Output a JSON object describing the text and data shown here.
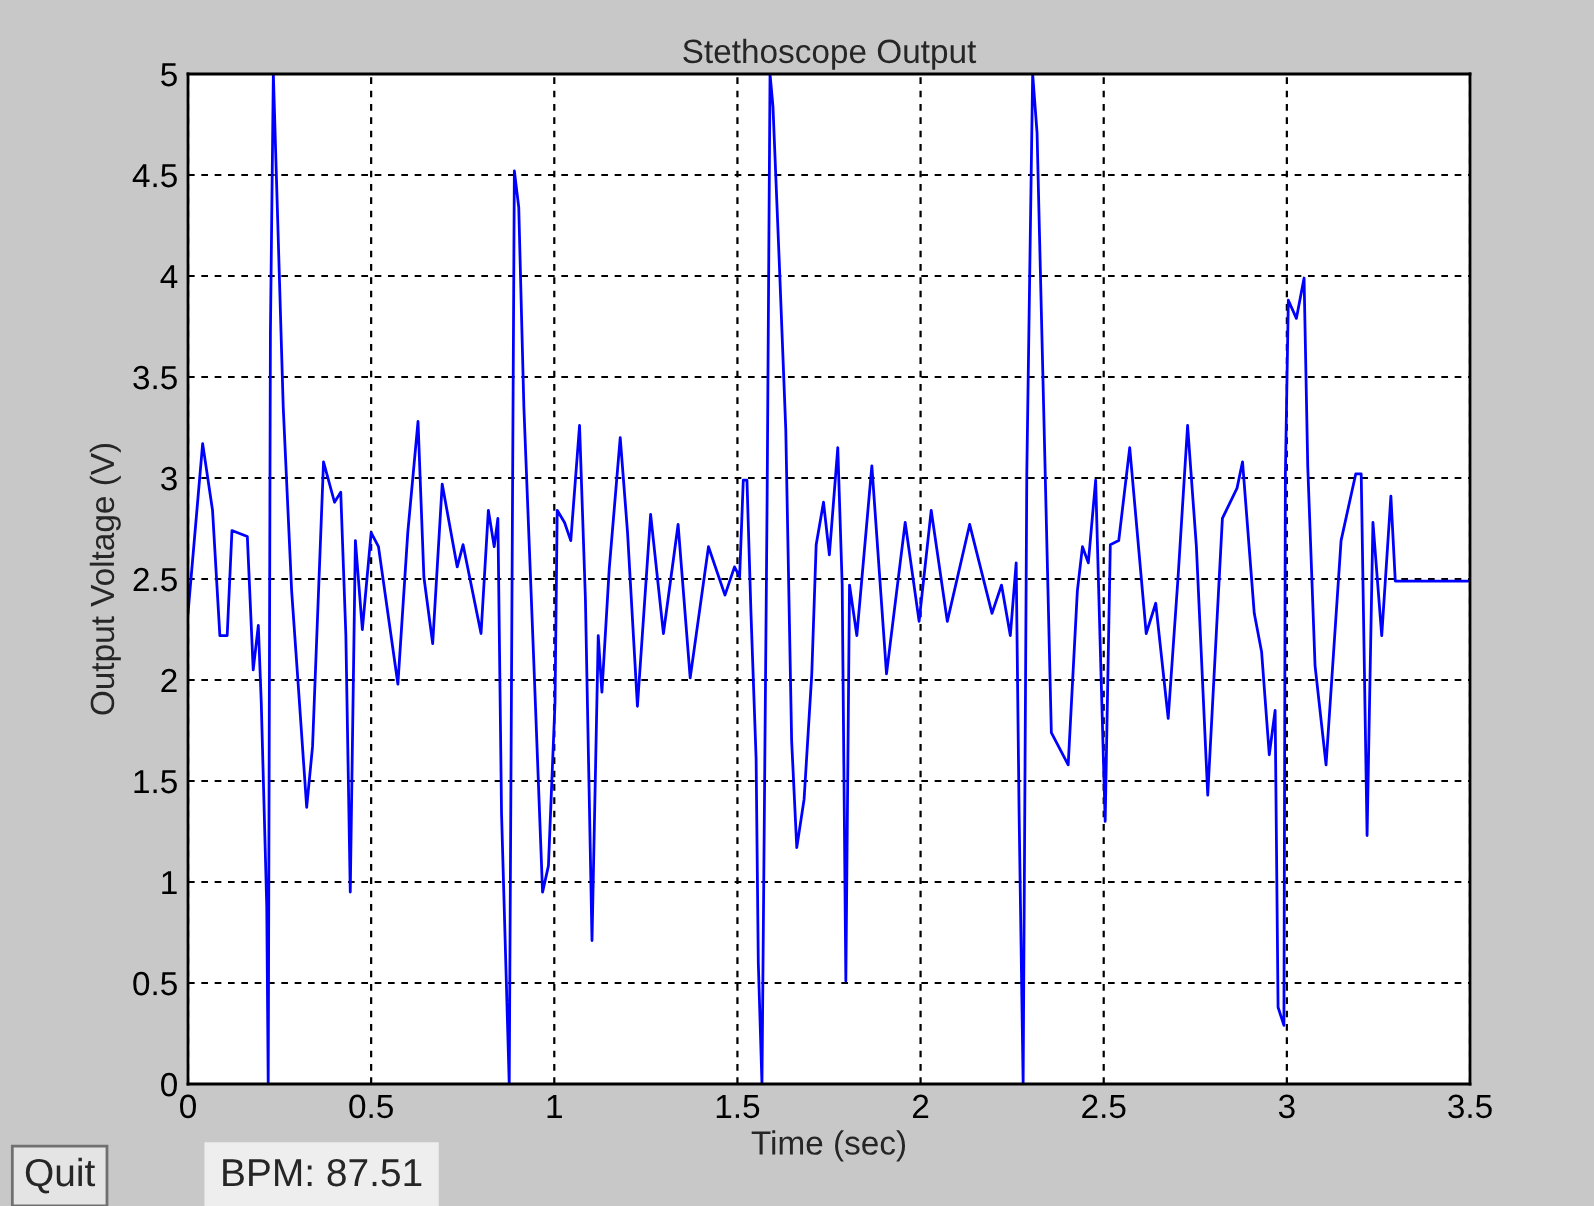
{
  "chart_data": {
    "type": "line",
    "title": "Stethoscope Output",
    "xlabel": "Time (sec)",
    "ylabel": "Output Voltage (V)",
    "annotations": [
      "Quit",
      "BPM: 87.51"
    ],
    "xlim": [
      0,
      3.5
    ],
    "xticks": [
      0,
      0.5,
      1,
      1.5,
      2,
      2.5,
      3,
      3.5
    ],
    "ylim": [
      0,
      5
    ],
    "yticks": [
      0,
      0.5,
      1,
      1.5,
      2,
      2.5,
      3,
      3.5,
      4,
      4.5,
      5
    ],
    "grid": true,
    "marker": "none",
    "line_style": "solid",
    "series": [
      {
        "color": "#0000ff",
        "x": [
          0,
          0.04,
          0.067,
          0.087,
          0.107,
          0.12,
          0.162,
          0.178,
          0.192,
          0.2,
          0.215,
          0.219,
          0.225,
          0.233,
          0.245,
          0.26,
          0.283,
          0.3,
          0.324,
          0.34,
          0.37,
          0.4,
          0.417,
          0.431,
          0.443,
          0.457,
          0.476,
          0.5,
          0.52,
          0.573,
          0.6,
          0.628,
          0.644,
          0.668,
          0.694,
          0.735,
          0.751,
          0.8,
          0.82,
          0.836,
          0.846,
          0.856,
          0.877,
          0.891,
          0.903,
          0.917,
          0.943,
          0.968,
          0.984,
          1.002,
          1.008,
          1.028,
          1.045,
          1.069,
          1.085,
          1.103,
          1.12,
          1.13,
          1.15,
          1.18,
          1.2,
          1.227,
          1.263,
          1.298,
          1.338,
          1.371,
          1.421,
          1.466,
          1.492,
          1.506,
          1.516,
          1.526,
          1.537,
          1.551,
          1.557,
          1.567,
          1.581,
          1.589,
          1.597,
          1.614,
          1.632,
          1.648,
          1.662,
          1.682,
          1.703,
          1.715,
          1.735,
          1.751,
          1.774,
          1.786,
          1.796,
          1.806,
          1.826,
          1.867,
          1.907,
          1.958,
          1.996,
          2.029,
          2.073,
          2.134,
          2.195,
          2.221,
          2.245,
          2.261,
          2.269,
          2.28,
          2.29,
          2.306,
          2.318,
          2.336,
          2.357,
          2.403,
          2.428,
          2.442,
          2.458,
          2.478,
          2.492,
          2.504,
          2.518,
          2.541,
          2.571,
          2.616,
          2.642,
          2.676,
          2.703,
          2.729,
          2.753,
          2.784,
          2.824,
          2.864,
          2.879,
          2.911,
          2.931,
          2.952,
          2.968,
          2.976,
          2.992,
          2.996,
          3.004,
          3.026,
          3.047,
          3.057,
          3.077,
          3.107,
          3.148,
          3.188,
          3.203,
          3.219,
          3.235,
          3.259,
          3.284,
          3.296,
          3.5
        ],
        "values": [
          2.33,
          3.17,
          2.84,
          2.22,
          2.22,
          2.74,
          2.71,
          2.05,
          2.27,
          1.89,
          0.88,
          0,
          3.72,
          5,
          4.27,
          3.35,
          2.44,
          2,
          1.37,
          1.67,
          3.08,
          2.88,
          2.93,
          2.22,
          0.95,
          2.69,
          2.25,
          2.73,
          2.66,
          1.98,
          2.73,
          3.28,
          2.51,
          2.18,
          2.97,
          2.56,
          2.67,
          2.23,
          2.84,
          2.66,
          2.8,
          1.34,
          0,
          4.52,
          4.34,
          3.35,
          2.14,
          0.95,
          1.08,
          1.89,
          2.84,
          2.78,
          2.69,
          3.26,
          2.4,
          0.71,
          2.22,
          1.94,
          2.55,
          3.2,
          2.73,
          1.87,
          2.82,
          2.23,
          2.77,
          2.01,
          2.66,
          2.42,
          2.56,
          2.51,
          2.99,
          2.99,
          2.33,
          1.61,
          0.6,
          0,
          2.88,
          5,
          4.84,
          4.08,
          3.24,
          1.7,
          1.17,
          1.41,
          2.03,
          2.67,
          2.88,
          2.62,
          3.15,
          2.47,
          0.51,
          2.47,
          2.22,
          3.06,
          2.03,
          2.78,
          2.29,
          2.84,
          2.29,
          2.77,
          2.33,
          2.47,
          2.22,
          2.58,
          1.34,
          0,
          3.02,
          5,
          4.71,
          3.35,
          1.74,
          1.58,
          2.44,
          2.66,
          2.58,
          2.99,
          2.07,
          1.3,
          2.67,
          2.69,
          3.15,
          2.23,
          2.38,
          1.81,
          2.51,
          3.26,
          2.66,
          1.43,
          2.8,
          2.95,
          3.08,
          2.33,
          2.14,
          1.63,
          1.85,
          0.38,
          0.29,
          3.02,
          3.88,
          3.79,
          3.99,
          3.06,
          2.07,
          1.58,
          2.69,
          3.02,
          3.02,
          1.23,
          2.78,
          2.22,
          2.91,
          2.49,
          2.49
        ]
      }
    ]
  }
}
